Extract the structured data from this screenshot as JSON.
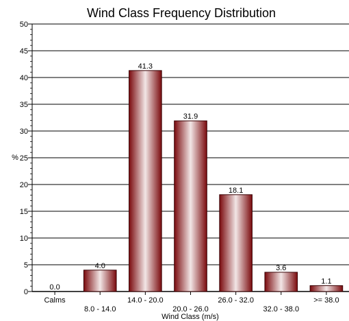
{
  "chart_data": {
    "type": "bar",
    "title": "Wind Class Frequency Distribution",
    "xlabel": "Wind Class (m/s)",
    "ylabel": "%",
    "ylim": [
      0,
      50
    ],
    "y_ticks": [
      0,
      5,
      10,
      15,
      20,
      25,
      30,
      35,
      40,
      45,
      50
    ],
    "grid": true,
    "categories": [
      "Calms",
      "8.0 - 14.0",
      "14.0 - 20.0",
      "20.0 - 26.0",
      "26.0 - 32.0",
      "32.0 - 38.0",
      ">= 38.0"
    ],
    "values": [
      0.0,
      4.0,
      41.3,
      31.9,
      18.1,
      3.6,
      1.1
    ],
    "value_labels": [
      "0.0",
      "4.0",
      "41.3",
      "31.9",
      "18.1",
      "3.6",
      "1.1"
    ],
    "bar_color": "#8b0f12",
    "bar_highlight": "#f2e6e6"
  }
}
